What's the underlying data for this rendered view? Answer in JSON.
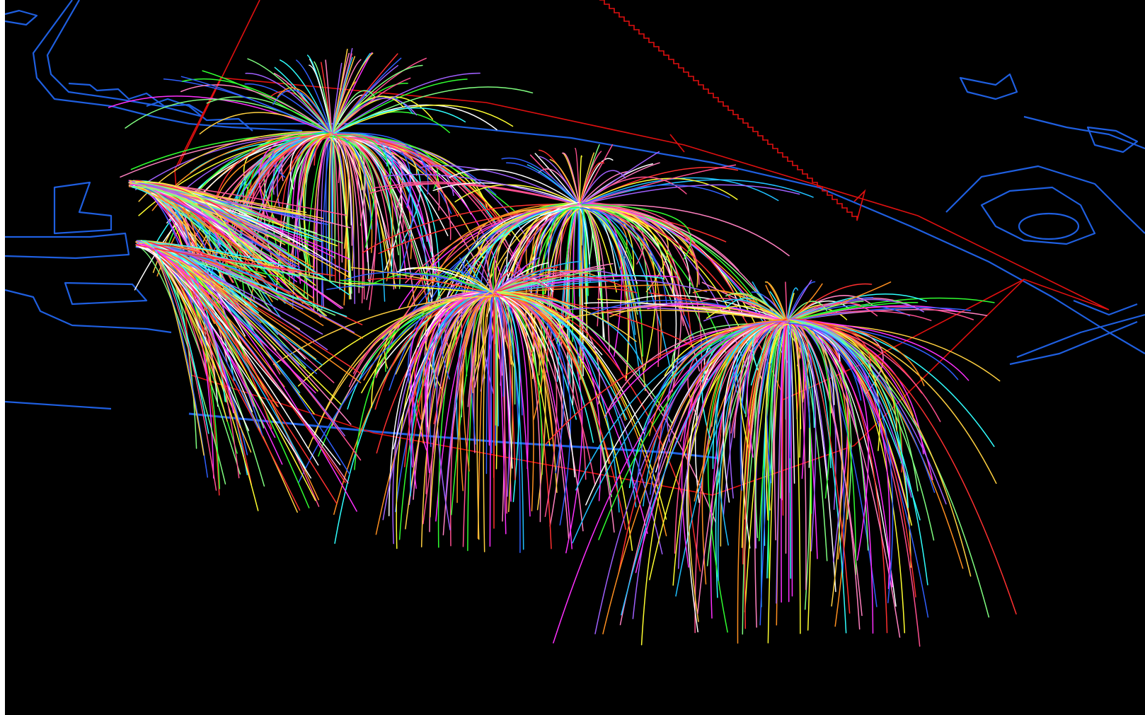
{
  "viewport": {
    "background": "#000000",
    "colors": {
      "site_outline": "#1f5fe0",
      "boundary": "#e01010",
      "pathlines": [
        "#ff3030",
        "#30ff30",
        "#3060ff",
        "#ffff30",
        "#ff30ff",
        "#30ffff",
        "#ff9020",
        "#ffffff",
        "#a060ff",
        "#ff80c0",
        "#80ff80",
        "#20c0ff",
        "#ffd040",
        "#ff5090"
      ]
    },
    "layers": [
      "site-outline",
      "boundary",
      "pathline-bundles"
    ],
    "pathline_bundles": [
      {
        "name": "pathline-bundle-1",
        "lines": 240
      },
      {
        "name": "pathline-bundle-2",
        "lines": 200
      },
      {
        "name": "pathline-bundle-3",
        "lines": 230
      },
      {
        "name": "pathline-bundle-4",
        "lines": 260
      },
      {
        "name": "pathline-bundle-5",
        "lines": 150
      },
      {
        "name": "pathline-bundle-6",
        "lines": 130
      }
    ]
  }
}
